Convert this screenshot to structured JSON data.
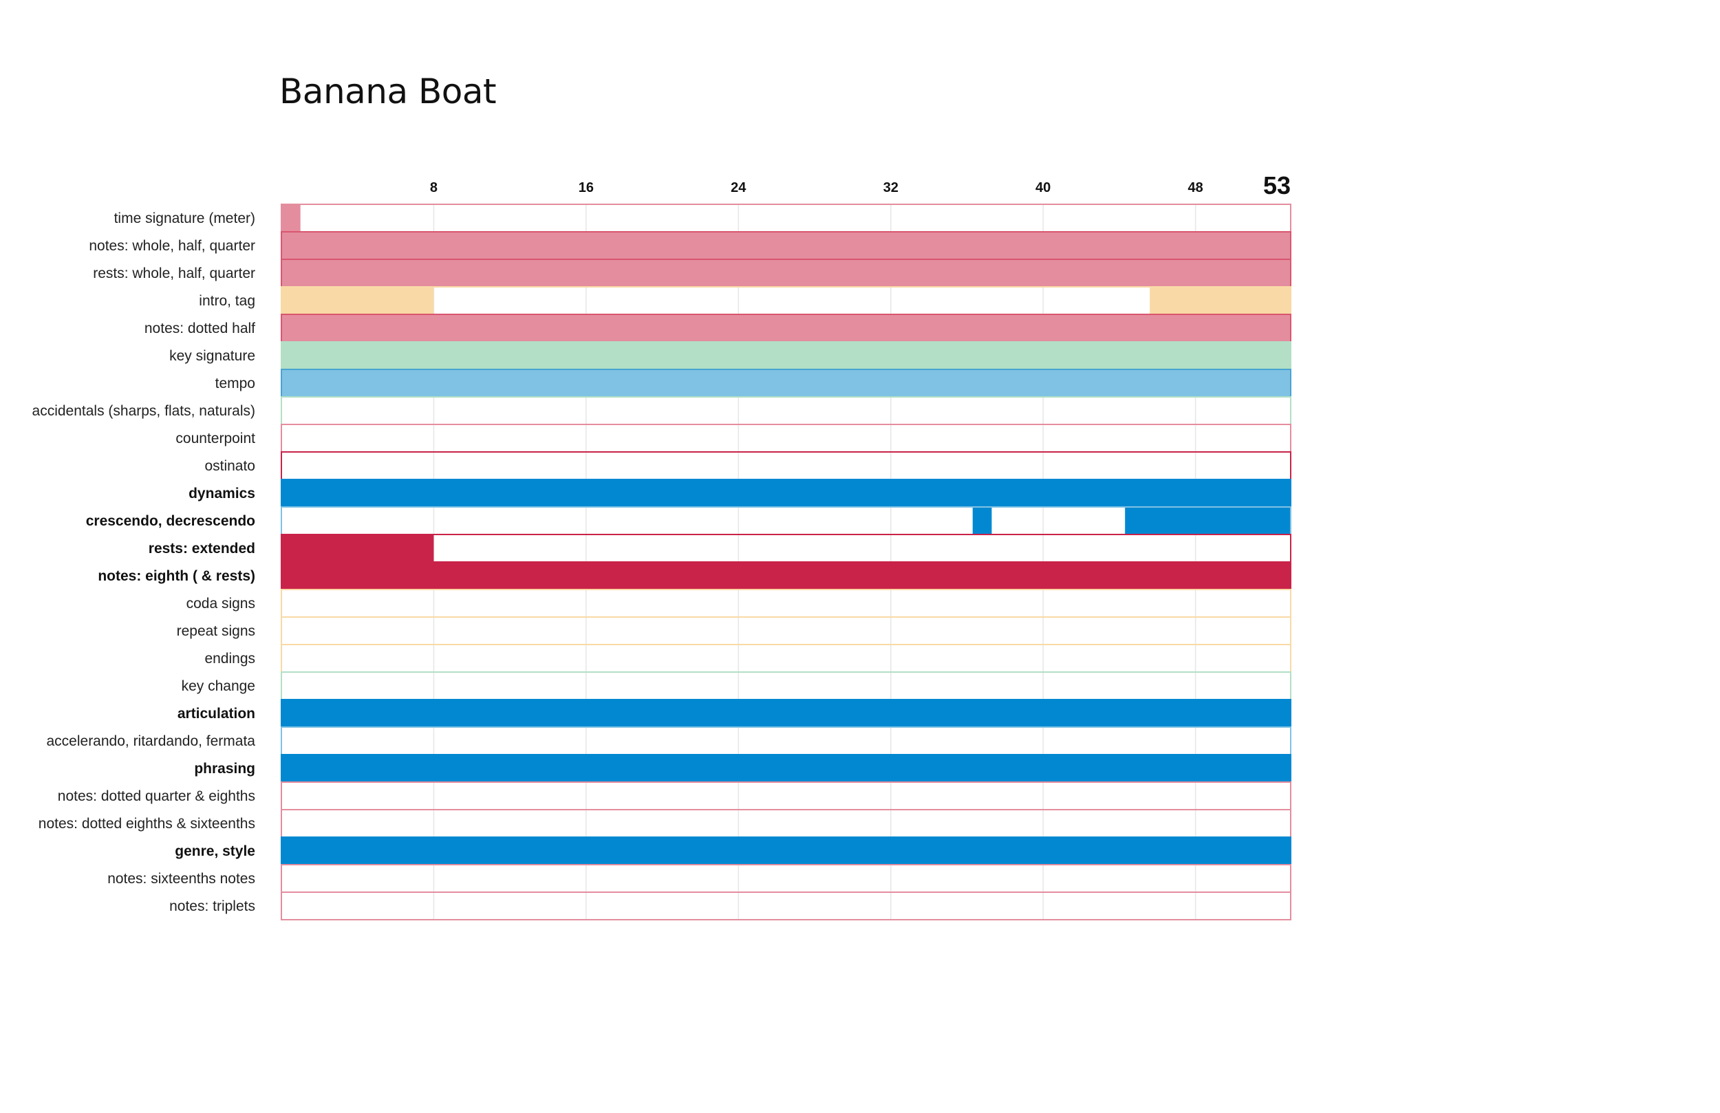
{
  "chart_data": {
    "type": "timeline",
    "title": "Banana Boat",
    "x_range": [
      0,
      53
    ],
    "total_measures": 53,
    "x_ticks": [
      8,
      16,
      24,
      32,
      40,
      48
    ],
    "x_tick_labels": [
      "8",
      "16",
      "24",
      "32",
      "40",
      "48"
    ],
    "total_label": "53",
    "colors": {
      "pink": "#e48d9e",
      "peach": "#f9d9a5",
      "green": "#b2dfc5",
      "sky": "#7fc2e4",
      "blue": "#0288d1",
      "red": "#c9234a",
      "grid": "#e6e6e6"
    },
    "rows": [
      {
        "label": "time signature (meter)",
        "bold": false,
        "color": "pink",
        "border": "#e48d9e",
        "segments": [
          [
            0,
            1
          ]
        ]
      },
      {
        "label": "notes: whole, half, quarter",
        "bold": false,
        "color": "pink",
        "border": "#d9566e",
        "segments": [
          [
            0,
            53
          ]
        ]
      },
      {
        "label": "rests: whole, half, quarter",
        "bold": false,
        "color": "pink",
        "border": "#d9566e",
        "segments": [
          [
            0,
            53
          ]
        ]
      },
      {
        "label": "intro, tag",
        "bold": false,
        "color": "peach",
        "border": "#f9d9a5",
        "segments": [
          [
            0,
            8
          ],
          [
            45.6,
            53
          ]
        ]
      },
      {
        "label": "notes: dotted half",
        "bold": false,
        "color": "pink",
        "border": "#d9566e",
        "segments": [
          [
            0,
            53
          ]
        ]
      },
      {
        "label": "key signature",
        "bold": false,
        "color": "green",
        "border": "#b2dfc5",
        "segments": [
          [
            0,
            53
          ]
        ]
      },
      {
        "label": "tempo",
        "bold": false,
        "color": "sky",
        "border": "#4aa3d1",
        "segments": [
          [
            0,
            53
          ]
        ]
      },
      {
        "label": "accidentals (sharps, flats, naturals)",
        "bold": false,
        "color": "green",
        "border": "#b2dfc5",
        "segments": []
      },
      {
        "label": "counterpoint",
        "bold": false,
        "color": "pink",
        "border": "#e48d9e",
        "segments": []
      },
      {
        "label": "ostinato",
        "bold": false,
        "color": "red",
        "border": "#c9234a",
        "segments": []
      },
      {
        "label": "dynamics",
        "bold": true,
        "color": "blue",
        "border": "#0288d1",
        "segments": [
          [
            0,
            53
          ]
        ]
      },
      {
        "label": "crescendo, decrescendo",
        "bold": true,
        "color": "blue",
        "border": "#7fc2e4",
        "segments": [
          [
            36.3,
            37.3
          ],
          [
            44.3,
            53
          ]
        ]
      },
      {
        "label": "rests: extended",
        "bold": true,
        "color": "red",
        "border": "#c9234a",
        "segments": [
          [
            0,
            8
          ]
        ]
      },
      {
        "label": "notes: eighth ( & rests)",
        "bold": true,
        "color": "red",
        "border": "#c9234a",
        "segments": [
          [
            0,
            53
          ]
        ]
      },
      {
        "label": "coda signs",
        "bold": false,
        "color": "peach",
        "border": "#f9d9a5",
        "segments": []
      },
      {
        "label": "repeat signs",
        "bold": false,
        "color": "peach",
        "border": "#f9d9a5",
        "segments": []
      },
      {
        "label": "endings",
        "bold": false,
        "color": "peach",
        "border": "#f9d9a5",
        "segments": []
      },
      {
        "label": "key change",
        "bold": false,
        "color": "green",
        "border": "#b2dfc5",
        "segments": []
      },
      {
        "label": "articulation",
        "bold": true,
        "color": "blue",
        "border": "#0288d1",
        "segments": [
          [
            0,
            53
          ]
        ]
      },
      {
        "label": "accelerando, ritardando, fermata",
        "bold": false,
        "color": "blue",
        "border": "#7fc2e4",
        "segments": []
      },
      {
        "label": "phrasing",
        "bold": true,
        "color": "blue",
        "border": "#0288d1",
        "segments": [
          [
            0,
            53
          ]
        ]
      },
      {
        "label": "notes: dotted quarter & eighths",
        "bold": false,
        "color": "pink",
        "border": "#e48d9e",
        "segments": []
      },
      {
        "label": "notes: dotted eighths & sixteenths",
        "bold": false,
        "color": "pink",
        "border": "#e48d9e",
        "segments": []
      },
      {
        "label": "genre, style",
        "bold": true,
        "color": "blue",
        "border": "#0288d1",
        "segments": [
          [
            0,
            53
          ]
        ]
      },
      {
        "label": "notes: sixteenths notes",
        "bold": false,
        "color": "pink",
        "border": "#e48d9e",
        "segments": []
      },
      {
        "label": "notes: triplets",
        "bold": false,
        "color": "pink",
        "border": "#e48d9e",
        "segments": []
      }
    ]
  }
}
